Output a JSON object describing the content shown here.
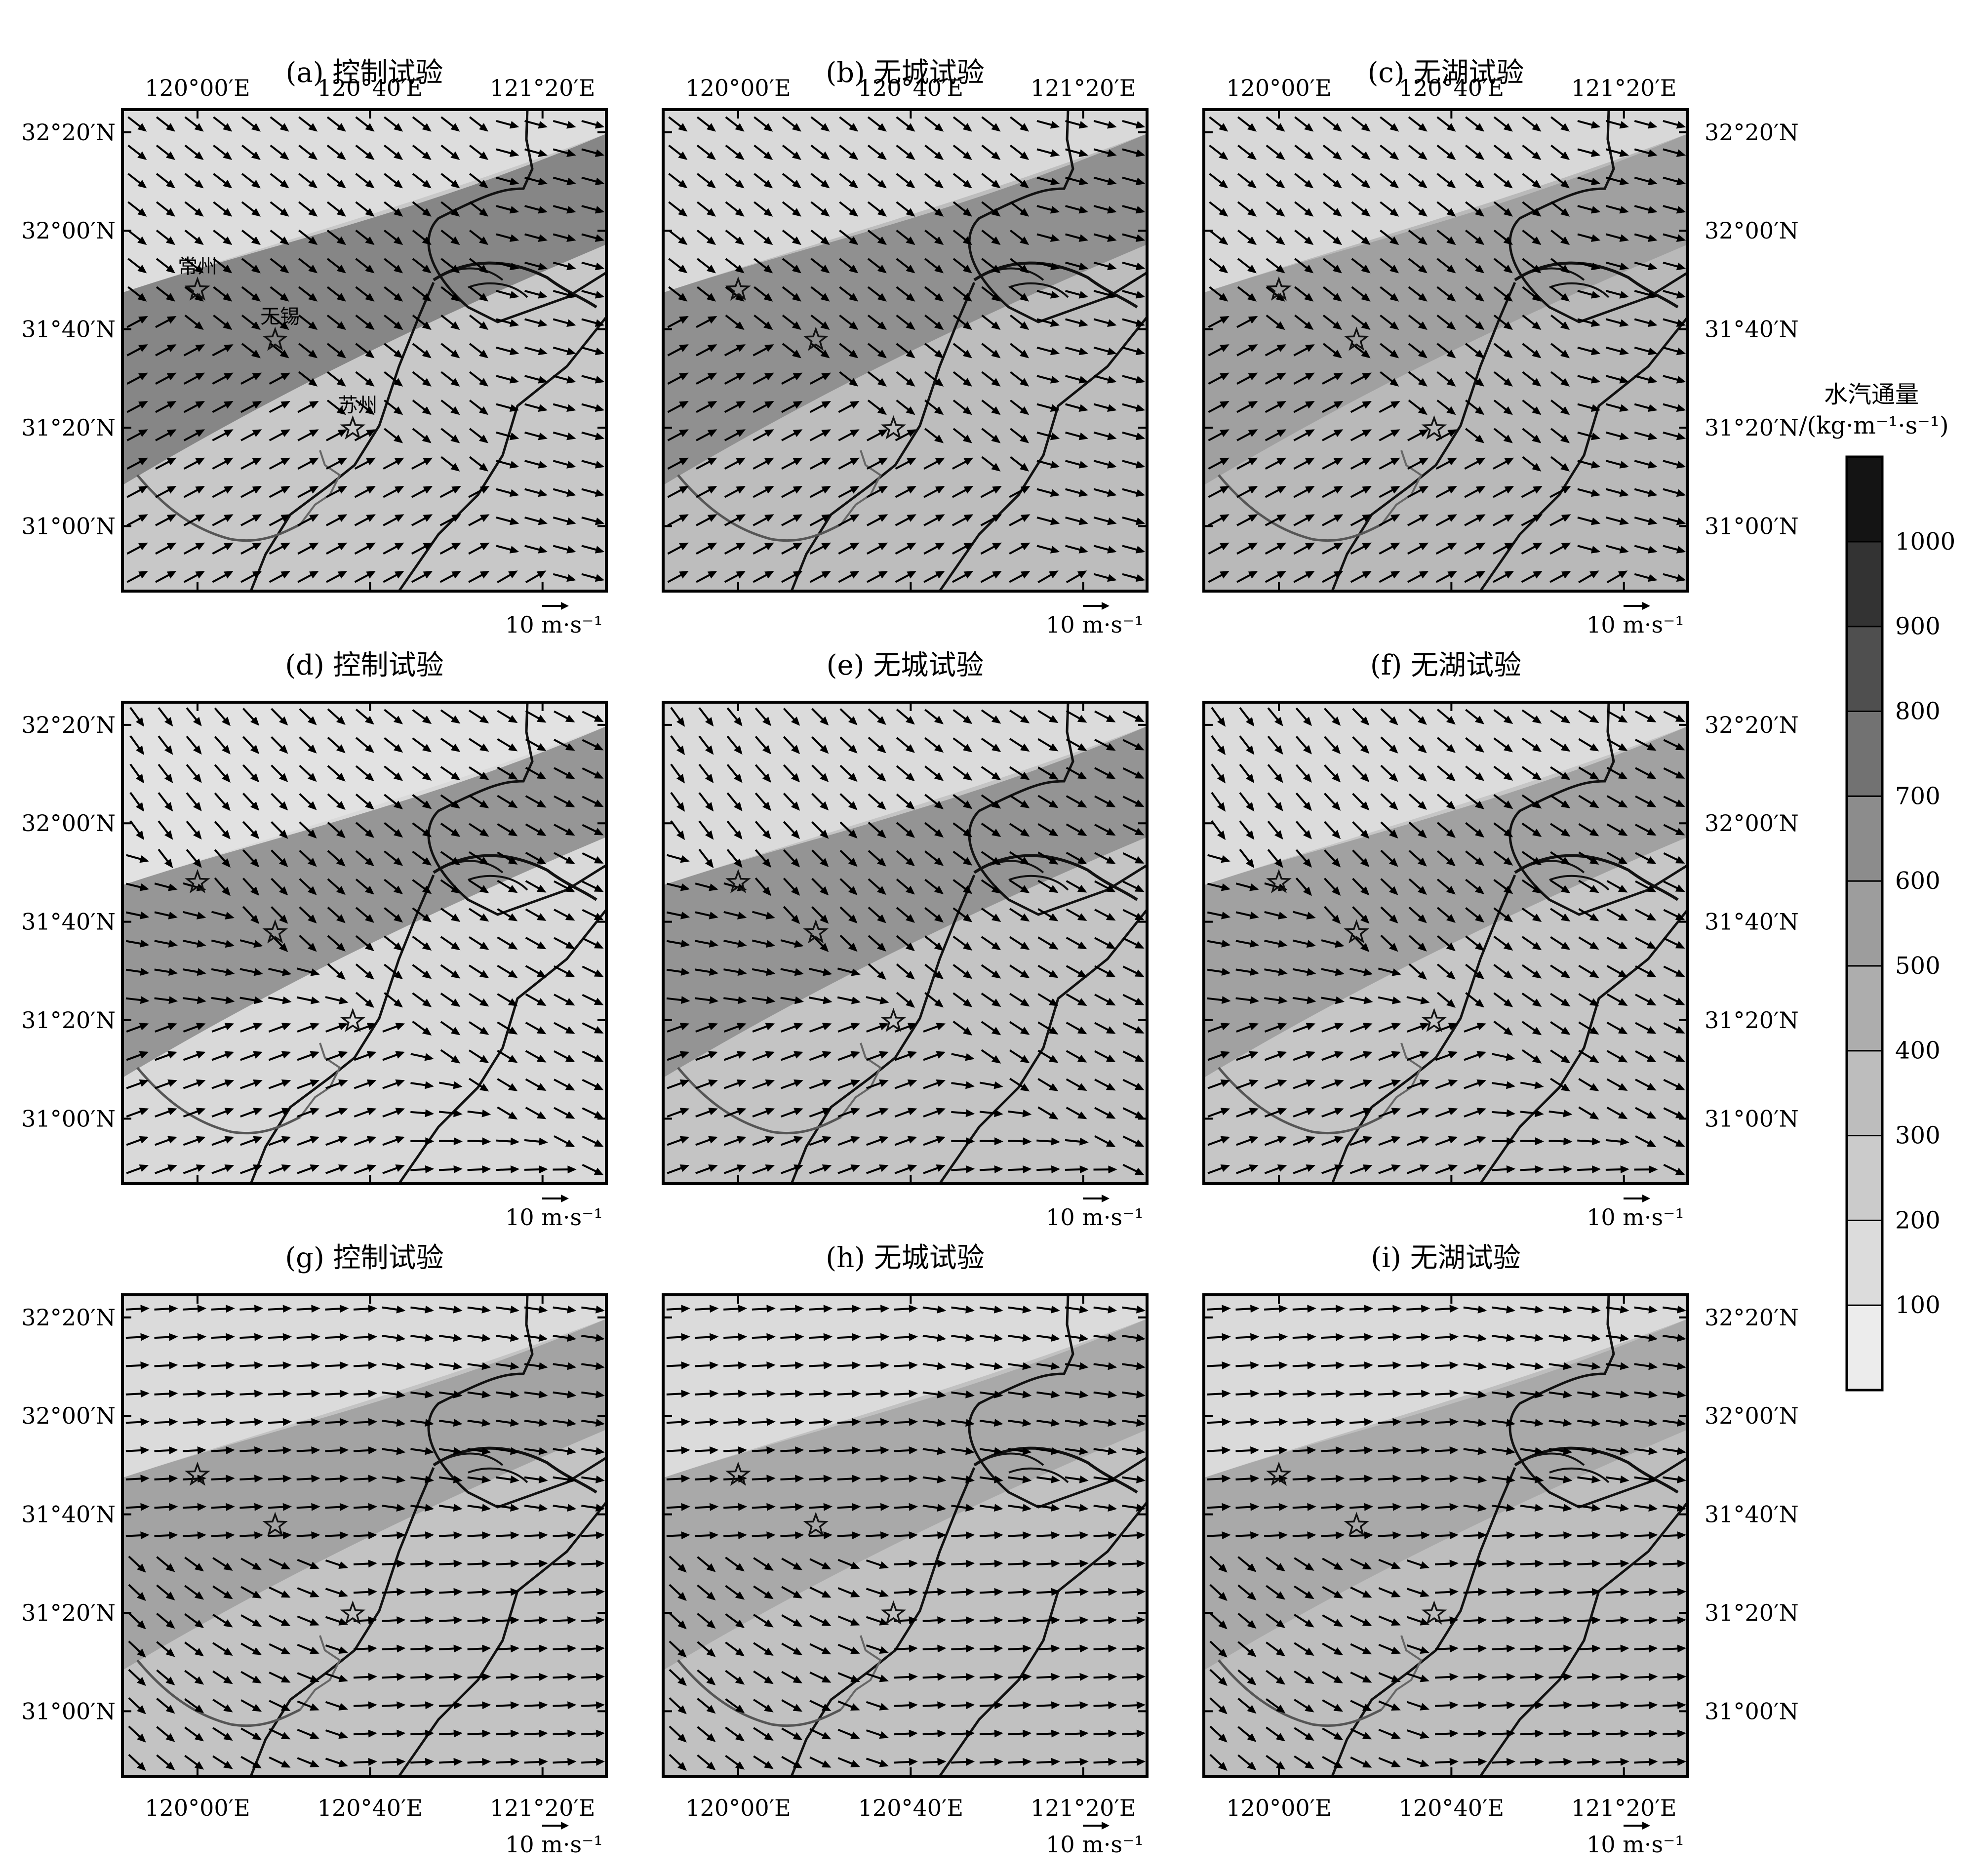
{
  "panels": [
    {
      "id": "a",
      "title": "(a) 控制试验",
      "experiment": "control",
      "wind_regime": "sw_front",
      "bg": "#c8c8c8",
      "band": "#7a7a7a"
    },
    {
      "id": "b",
      "title": "(b) 无城试验",
      "experiment": "no_city",
      "wind_regime": "sw_front",
      "bg": "#bdbdbd",
      "band": "#888888"
    },
    {
      "id": "c",
      "title": "(c) 无湖试验",
      "experiment": "no_lake",
      "wind_regime": "sw_front",
      "bg": "#b9b9b9",
      "band": "#9b9b9b"
    },
    {
      "id": "d",
      "title": "(d) 控制试验",
      "experiment": "control",
      "wind_regime": "converge",
      "bg": "#d9d9d9",
      "band": "#8a8a8a"
    },
    {
      "id": "e",
      "title": "(e) 无城试验",
      "experiment": "no_city",
      "wind_regime": "converge",
      "bg": "#c4c4c4",
      "band": "#8c8c8c"
    },
    {
      "id": "f",
      "title": "(f) 无湖试验",
      "experiment": "no_lake",
      "wind_regime": "converge",
      "bg": "#c6c6c6",
      "band": "#9a9a9a"
    },
    {
      "id": "g",
      "title": "(g) 控制试验",
      "experiment": "control",
      "wind_regime": "westerly",
      "bg": "#c3c3c3",
      "band": "#9d9d9d"
    },
    {
      "id": "h",
      "title": "(h) 无城试验",
      "experiment": "no_city",
      "wind_regime": "westerly",
      "bg": "#c1c1c1",
      "band": "#a5a5a5"
    },
    {
      "id": "i",
      "title": "(i) 无湖试验",
      "experiment": "no_lake",
      "wind_regime": "westerly",
      "bg": "#bebebe",
      "band": "#a6a6a6"
    }
  ],
  "axes": {
    "lon_ticks": [
      "120°00′E",
      "120°40′E",
      "121°20′E"
    ],
    "lat_ticks": [
      "32°20′N",
      "32°00′N",
      "31°40′N",
      "31°20′N",
      "31°00′N"
    ]
  },
  "cities": [
    {
      "name": "常州",
      "lon": 120.0,
      "lat": 31.8
    },
    {
      "name": "无锡",
      "lon": 120.3,
      "lat": 31.63
    },
    {
      "name": "苏州",
      "lon": 120.6,
      "lat": 31.33
    }
  ],
  "reference_vector": {
    "label": "10 m·s⁻¹",
    "speed": 10
  },
  "colorbar": {
    "title": "水汽通量",
    "unit": "/(kg·m⁻¹·s⁻¹)",
    "ticks": [
      "100",
      "200",
      "300",
      "400",
      "500",
      "600",
      "700",
      "800",
      "900",
      "1000"
    ],
    "colors": [
      "#ececec",
      "#dcdcdc",
      "#cbcbcb",
      "#bdbdbd",
      "#adadad",
      "#9d9d9d",
      "#8c8c8c",
      "#727272",
      "#4f4f4f",
      "#333333",
      "#141414"
    ]
  }
}
